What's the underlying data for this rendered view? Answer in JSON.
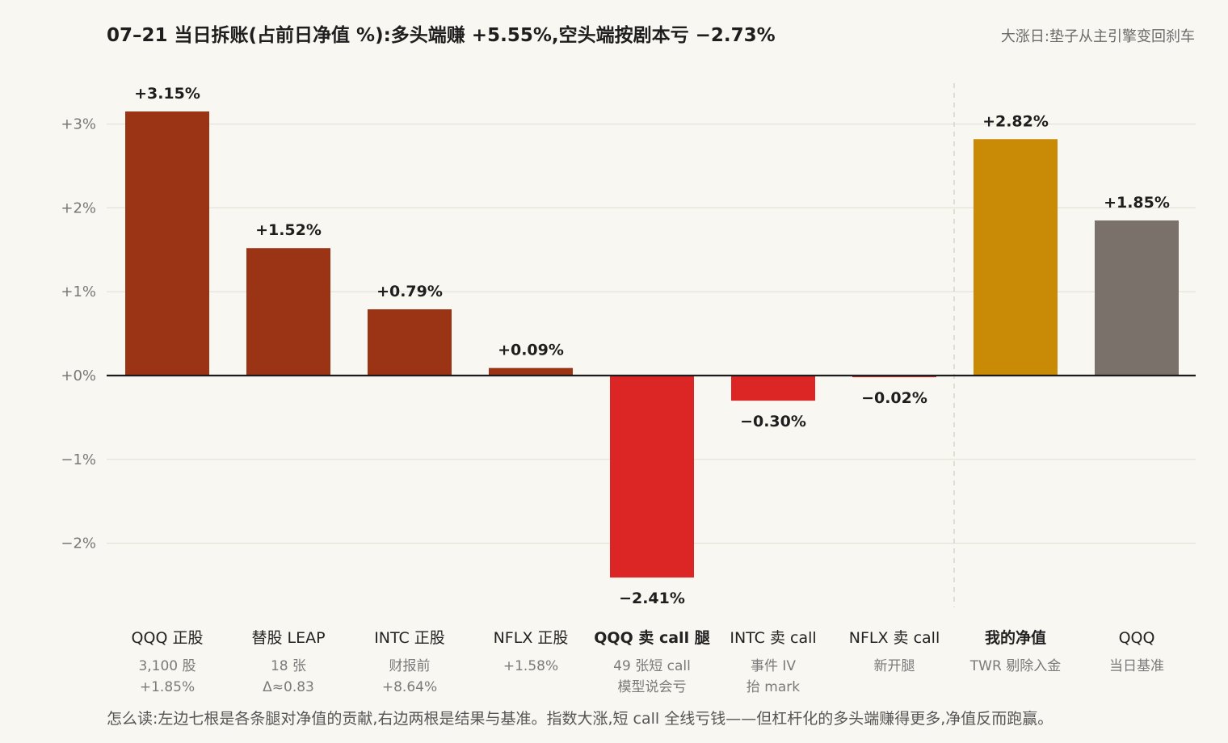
{
  "chart_data": {
    "type": "bar",
    "title": "07–21 当日拆账(占前日净值 %):多头端赚 +5.55%,空头端按剧本亏 −2.73%",
    "subtitle": "大涨日:垫子从主引擎变回刹车",
    "ylim": [
      -2.7,
      3.4
    ],
    "yticks": [
      {
        "value": 3,
        "label": "+3%"
      },
      {
        "value": 2,
        "label": "+2%"
      },
      {
        "value": 1,
        "label": "+1%"
      },
      {
        "value": 0,
        "label": "+0%"
      },
      {
        "value": -1,
        "label": "−1%"
      },
      {
        "value": -2,
        "label": "−2%"
      }
    ],
    "grid": true,
    "bars": [
      {
        "category": "QQQ 正股",
        "value": 3.15,
        "label": "+3.15%",
        "sub": [
          "3,100 股",
          "+1.85%"
        ],
        "color": "#9a3415",
        "bold": false
      },
      {
        "category": "替股 LEAP",
        "value": 1.52,
        "label": "+1.52%",
        "sub": [
          "18 张",
          "Δ≈0.83"
        ],
        "color": "#9a3415",
        "bold": false
      },
      {
        "category": "INTC 正股",
        "value": 0.79,
        "label": "+0.79%",
        "sub": [
          "财报前",
          "+8.64%"
        ],
        "color": "#9a3415",
        "bold": false
      },
      {
        "category": "NFLX 正股",
        "value": 0.09,
        "label": "+0.09%",
        "sub": [
          "+1.58%"
        ],
        "color": "#9a3415",
        "bold": false
      },
      {
        "category": "QQQ 卖 call 腿",
        "value": -2.41,
        "label": "−2.41%",
        "sub": [
          "49 张短 call",
          "模型说会亏"
        ],
        "color": "#dc2626",
        "bold": true
      },
      {
        "category": "INTC 卖 call",
        "value": -0.3,
        "label": "−0.30%",
        "sub": [
          "事件 IV",
          "抬 mark"
        ],
        "color": "#dc2626",
        "bold": false
      },
      {
        "category": "NFLX 卖 call",
        "value": -0.02,
        "label": "−0.02%",
        "sub": [
          "新开腿"
        ],
        "color": "#dc2626",
        "bold": false
      },
      {
        "category": "我的净值",
        "value": 2.82,
        "label": "+2.82%",
        "sub": [
          "TWR 剔除入金"
        ],
        "color": "#c98a06",
        "bold": true
      },
      {
        "category": "QQQ",
        "value": 1.85,
        "label": "+1.85%",
        "sub": [
          "当日基准"
        ],
        "color": "#7b716b",
        "bold": false
      }
    ],
    "note": "怎么读:左边七根是各条腿对净值的贡献,右边两根是结果与基准。指数大涨,短 call 全线亏钱——但杠杆化的多头端赚得更多,净值反而跑赢。"
  }
}
